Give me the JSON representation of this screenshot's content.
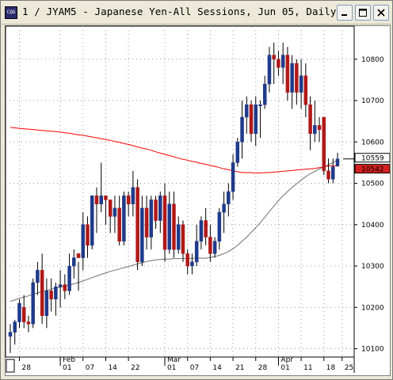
{
  "window": {
    "title": "1 / JYAM5 - Japanese Yen-All Sessions, Jun 05, Daily",
    "app_icon_text": "CQG"
  },
  "chart_data": {
    "type": "candlestick",
    "title": "1 / JYAM5 - Japanese Yen-All Sessions, Jun 05, Daily",
    "ylim": [
      10080,
      10880
    ],
    "y_ticks": [
      10100,
      10200,
      10300,
      10400,
      10500,
      10600,
      10700,
      10800
    ],
    "y_tick_labels": [
      "10100",
      "10200",
      "10300",
      "10400",
      "10500",
      "10600",
      "10700",
      "10800"
    ],
    "x_tick_labels": [
      "28",
      "01",
      "07",
      "14",
      "22",
      "01",
      "07",
      "14",
      "21",
      "28",
      "01",
      "11",
      "18",
      "25"
    ],
    "month_labels": [
      "Feb",
      "Mar",
      "Apr"
    ],
    "price_labels": [
      {
        "value": 10559,
        "text": "10559",
        "color": "#ffffff"
      },
      {
        "value": 10542,
        "text": "10542",
        "color": "#d42020"
      }
    ],
    "grid": true,
    "up_color": "#1f3a8a",
    "down_color": "#b01818",
    "series": [
      {
        "name": "",
        "type": "candles",
        "values": [
          [
            10130,
            10160,
            10090,
            10140
          ],
          [
            10140,
            10170,
            10110,
            10165
          ],
          [
            10165,
            10220,
            10150,
            10210
          ],
          [
            10200,
            10230,
            10150,
            10165
          ],
          [
            10165,
            10180,
            10140,
            10160
          ],
          [
            10160,
            10270,
            10150,
            10260
          ],
          [
            10260,
            10310,
            10230,
            10290
          ],
          [
            10290,
            10330,
            10160,
            10180
          ],
          [
            10180,
            10270,
            10150,
            10240
          ],
          [
            10240,
            10270,
            10190,
            10220
          ],
          [
            10220,
            10260,
            10180,
            10250
          ],
          [
            10250,
            10290,
            10200,
            10255
          ],
          [
            10255,
            10280,
            10220,
            10240
          ],
          [
            10240,
            10330,
            10230,
            10300
          ],
          [
            10300,
            10340,
            10270,
            10320
          ],
          [
            10330,
            10310,
            10240,
            10320
          ],
          [
            10320,
            10430,
            10290,
            10400
          ],
          [
            10400,
            10420,
            10320,
            10350
          ],
          [
            10350,
            10470,
            10340,
            10470
          ],
          [
            10470,
            10490,
            10380,
            10450
          ],
          [
            10450,
            10550,
            10430,
            10470
          ],
          [
            10470,
            10460,
            10400,
            10460
          ],
          [
            10460,
            10450,
            10380,
            10420
          ],
          [
            10420,
            10470,
            10380,
            10440
          ],
          [
            10440,
            10470,
            10350,
            10360
          ],
          [
            10360,
            10480,
            10350,
            10470
          ],
          [
            10470,
            10480,
            10420,
            10450
          ],
          [
            10450,
            10530,
            10420,
            10490
          ],
          [
            10490,
            10510,
            10290,
            10310
          ],
          [
            10310,
            10470,
            10300,
            10440
          ],
          [
            10440,
            10470,
            10340,
            10370
          ],
          [
            10370,
            10470,
            10340,
            10460
          ],
          [
            10460,
            10470,
            10390,
            10410
          ],
          [
            10410,
            10480,
            10380,
            10470
          ],
          [
            10470,
            10500,
            10310,
            10340
          ],
          [
            10340,
            10480,
            10330,
            10450
          ],
          [
            10450,
            10480,
            10320,
            10340
          ],
          [
            10340,
            10420,
            10330,
            10400
          ],
          [
            10400,
            10410,
            10310,
            10330
          ],
          [
            10330,
            10340,
            10280,
            10300
          ],
          [
            10300,
            10330,
            10280,
            10310
          ],
          [
            10310,
            10400,
            10300,
            10360
          ],
          [
            10360,
            10420,
            10340,
            10410
          ],
          [
            10410,
            10440,
            10350,
            10370
          ],
          [
            10370,
            10400,
            10310,
            10330
          ],
          [
            10330,
            10370,
            10320,
            10360
          ],
          [
            10360,
            10440,
            10340,
            10430
          ],
          [
            10430,
            10480,
            10380,
            10450
          ],
          [
            10450,
            10500,
            10420,
            10480
          ],
          [
            10480,
            10570,
            10460,
            10550
          ],
          [
            10550,
            10610,
            10540,
            10600
          ],
          [
            10600,
            10700,
            10560,
            10660
          ],
          [
            10660,
            10710,
            10620,
            10690
          ],
          [
            10690,
            10700,
            10600,
            10620
          ],
          [
            10620,
            10710,
            10590,
            10690
          ],
          [
            10690,
            10700,
            10610,
            10690
          ],
          [
            10690,
            10760,
            10680,
            10740
          ],
          [
            10740,
            10830,
            10720,
            10810
          ],
          [
            10810,
            10840,
            10740,
            10800
          ],
          [
            10800,
            10820,
            10760,
            10780
          ],
          [
            10780,
            10840,
            10740,
            10810
          ],
          [
            10810,
            10830,
            10700,
            10720
          ],
          [
            10720,
            10810,
            10680,
            10790
          ],
          [
            10790,
            10800,
            10690,
            10720
          ],
          [
            10720,
            10800,
            10680,
            10760
          ],
          [
            10760,
            10790,
            10660,
            10690
          ],
          [
            10690,
            10710,
            10580,
            10620
          ],
          [
            10620,
            10700,
            10600,
            10640
          ],
          [
            10640,
            10660,
            10600,
            10630
          ],
          [
            10660,
            10660,
            10520,
            10530
          ],
          [
            10530,
            10560,
            10500,
            10510
          ],
          [
            10510,
            10560,
            10500,
            10540
          ],
          [
            10542,
            10574,
            10540,
            10559
          ]
        ]
      },
      {
        "name": "",
        "type": "line",
        "color": "#ff0000",
        "values": [
          10635,
          10634,
          10633,
          10632,
          10631,
          10630,
          10629,
          10628,
          10627,
          10626,
          10625,
          10624,
          10622,
          10621,
          10619,
          10617,
          10616,
          10614,
          10612,
          10610,
          10608,
          10606,
          10604,
          10601,
          10599,
          10596,
          10594,
          10591,
          10588,
          10585,
          10583,
          10580,
          10576,
          10573,
          10570,
          10567,
          10564,
          10561,
          10558,
          10556,
          10553,
          10551,
          10548,
          10546,
          10543,
          10541,
          10538,
          10535,
          10533,
          10530,
          10528,
          10526,
          10526,
          10526,
          10525,
          10525,
          10526,
          10526,
          10527,
          10528,
          10529,
          10530,
          10531,
          10532,
          10533,
          10534,
          10535,
          10536,
          10538,
          10540,
          10542,
          10542,
          10542
        ]
      },
      {
        "name": "",
        "type": "line",
        "color": "#707070",
        "values": [
          10215,
          10218,
          10222,
          10225,
          10228,
          10232,
          10235,
          10238,
          10241,
          10244,
          10247,
          10249,
          10252,
          10254,
          10257,
          10260,
          10264,
          10268,
          10272,
          10276,
          10280,
          10283,
          10287,
          10290,
          10293,
          10296,
          10299,
          10302,
          10305,
          10308,
          10311,
          10313,
          10315,
          10316,
          10317,
          10317,
          10318,
          10318,
          10318,
          10318,
          10319,
          10319,
          10319,
          10319,
          10321,
          10323,
          10326,
          10330,
          10335,
          10342,
          10350,
          10360,
          10370,
          10381,
          10393,
          10405,
          10418,
          10432,
          10445,
          10458,
          10470,
          10480,
          10490,
          10499,
          10508,
          10516,
          10523,
          10529,
          10535,
          10540,
          10545,
          10550,
          10556
        ]
      }
    ]
  }
}
